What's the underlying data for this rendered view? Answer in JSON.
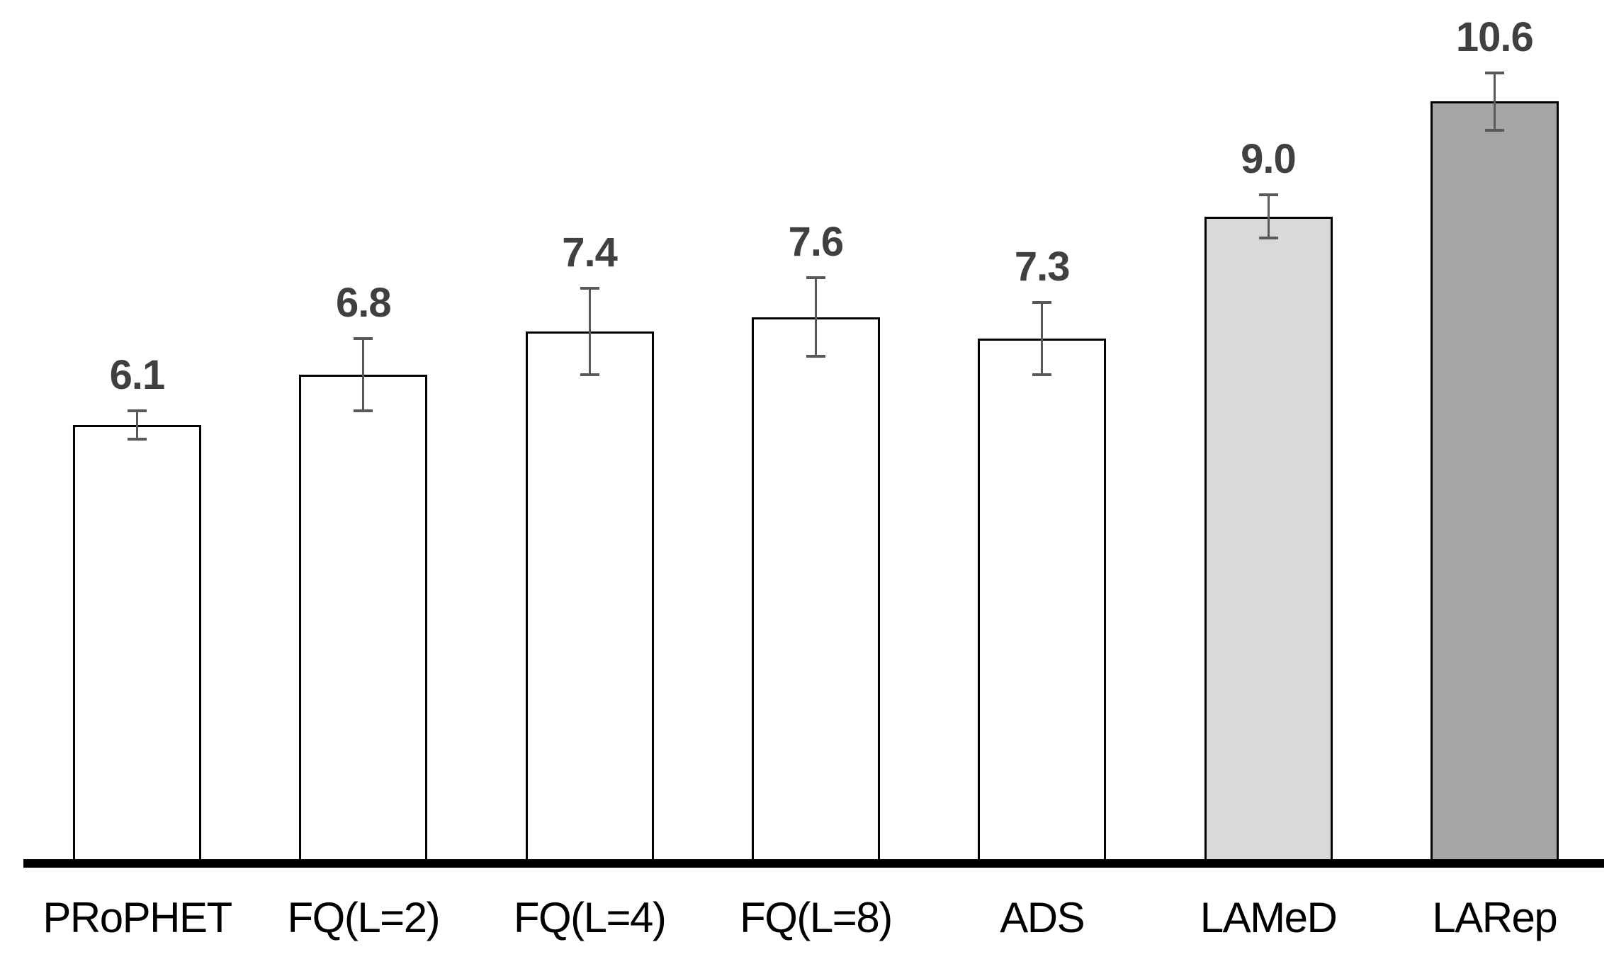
{
  "chart_data": {
    "type": "bar",
    "title": "",
    "xlabel": "",
    "ylabel": "",
    "categories": [
      "PRoPHET",
      "FQ(L=2)",
      "FQ(L=4)",
      "FQ(L=8)",
      "ADS",
      "LAMeD",
      "LARep"
    ],
    "values": [
      6.1,
      6.8,
      7.4,
      7.6,
      7.3,
      9.0,
      10.6
    ],
    "value_labels": [
      "6.1",
      "6.8",
      "7.4",
      "7.6",
      "7.3",
      "9.0",
      "10.6"
    ],
    "errors": [
      0.2,
      0.5,
      0.6,
      0.55,
      0.5,
      0.3,
      0.4
    ],
    "bar_fills": [
      "#ffffff",
      "#ffffff",
      "#ffffff",
      "#ffffff",
      "#ffffff",
      "#d9d9d9",
      "#a6a6a6"
    ],
    "bar_border_color": "#000000",
    "error_bar_color": "#595959",
    "value_label_color": "#404040",
    "category_label_color": "#000000",
    "axis_line_color": "#000000",
    "ylim": [
      0,
      11.5
    ],
    "grid": false,
    "legend": false,
    "error_bars": true,
    "background": "#ffffff"
  }
}
